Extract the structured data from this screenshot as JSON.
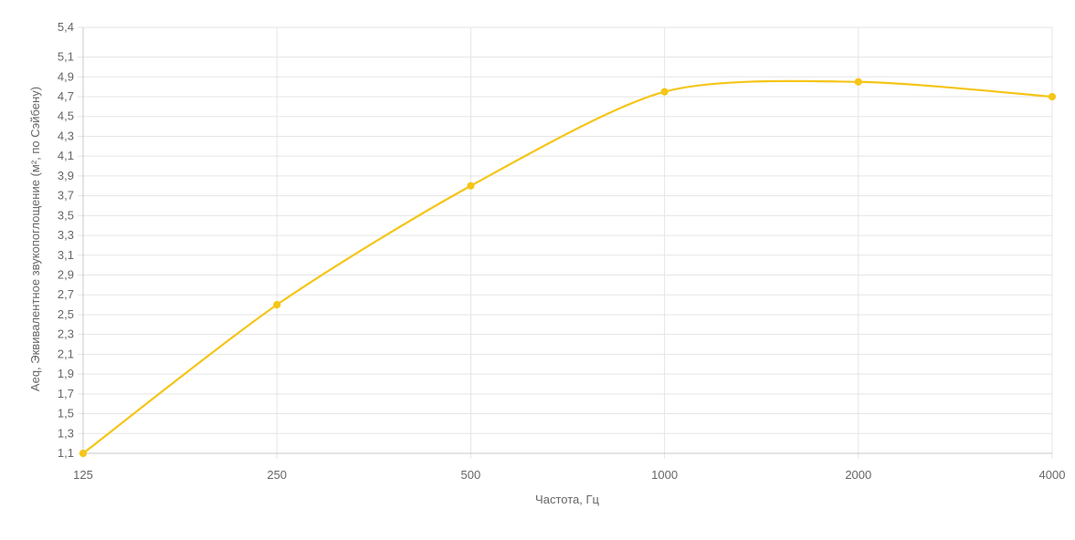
{
  "chart_data": {
    "type": "line",
    "title": "",
    "xlabel": "Частота, Гц",
    "ylabel": "Aeq, Эквивалентное звукопоглощение (м², по Сэйбену)",
    "categories": [
      "125",
      "250",
      "500",
      "1000",
      "2000",
      "4000"
    ],
    "series": [
      {
        "values": [
          1.1,
          2.6,
          3.8,
          4.75,
          4.85,
          4.7
        ],
        "color": "#f5c518"
      }
    ],
    "ylim": [
      1.1,
      5.4
    ],
    "yticks": [
      "1,1",
      "1,3",
      "1,5",
      "1,7",
      "1,9",
      "2,1",
      "2,3",
      "2,5",
      "2,7",
      "2,9",
      "3,1",
      "3,3",
      "3,5",
      "3,7",
      "3,9",
      "4,1",
      "4,3",
      "4,5",
      "4,7",
      "4,9",
      "5,1",
      "5,4"
    ],
    "ytick_values": [
      1.1,
      1.3,
      1.5,
      1.7,
      1.9,
      2.1,
      2.3,
      2.5,
      2.7,
      2.9,
      3.1,
      3.3,
      3.5,
      3.7,
      3.9,
      4.1,
      4.3,
      4.5,
      4.7,
      4.9,
      5.1,
      5.4
    ],
    "grid": true,
    "legend": "none"
  }
}
